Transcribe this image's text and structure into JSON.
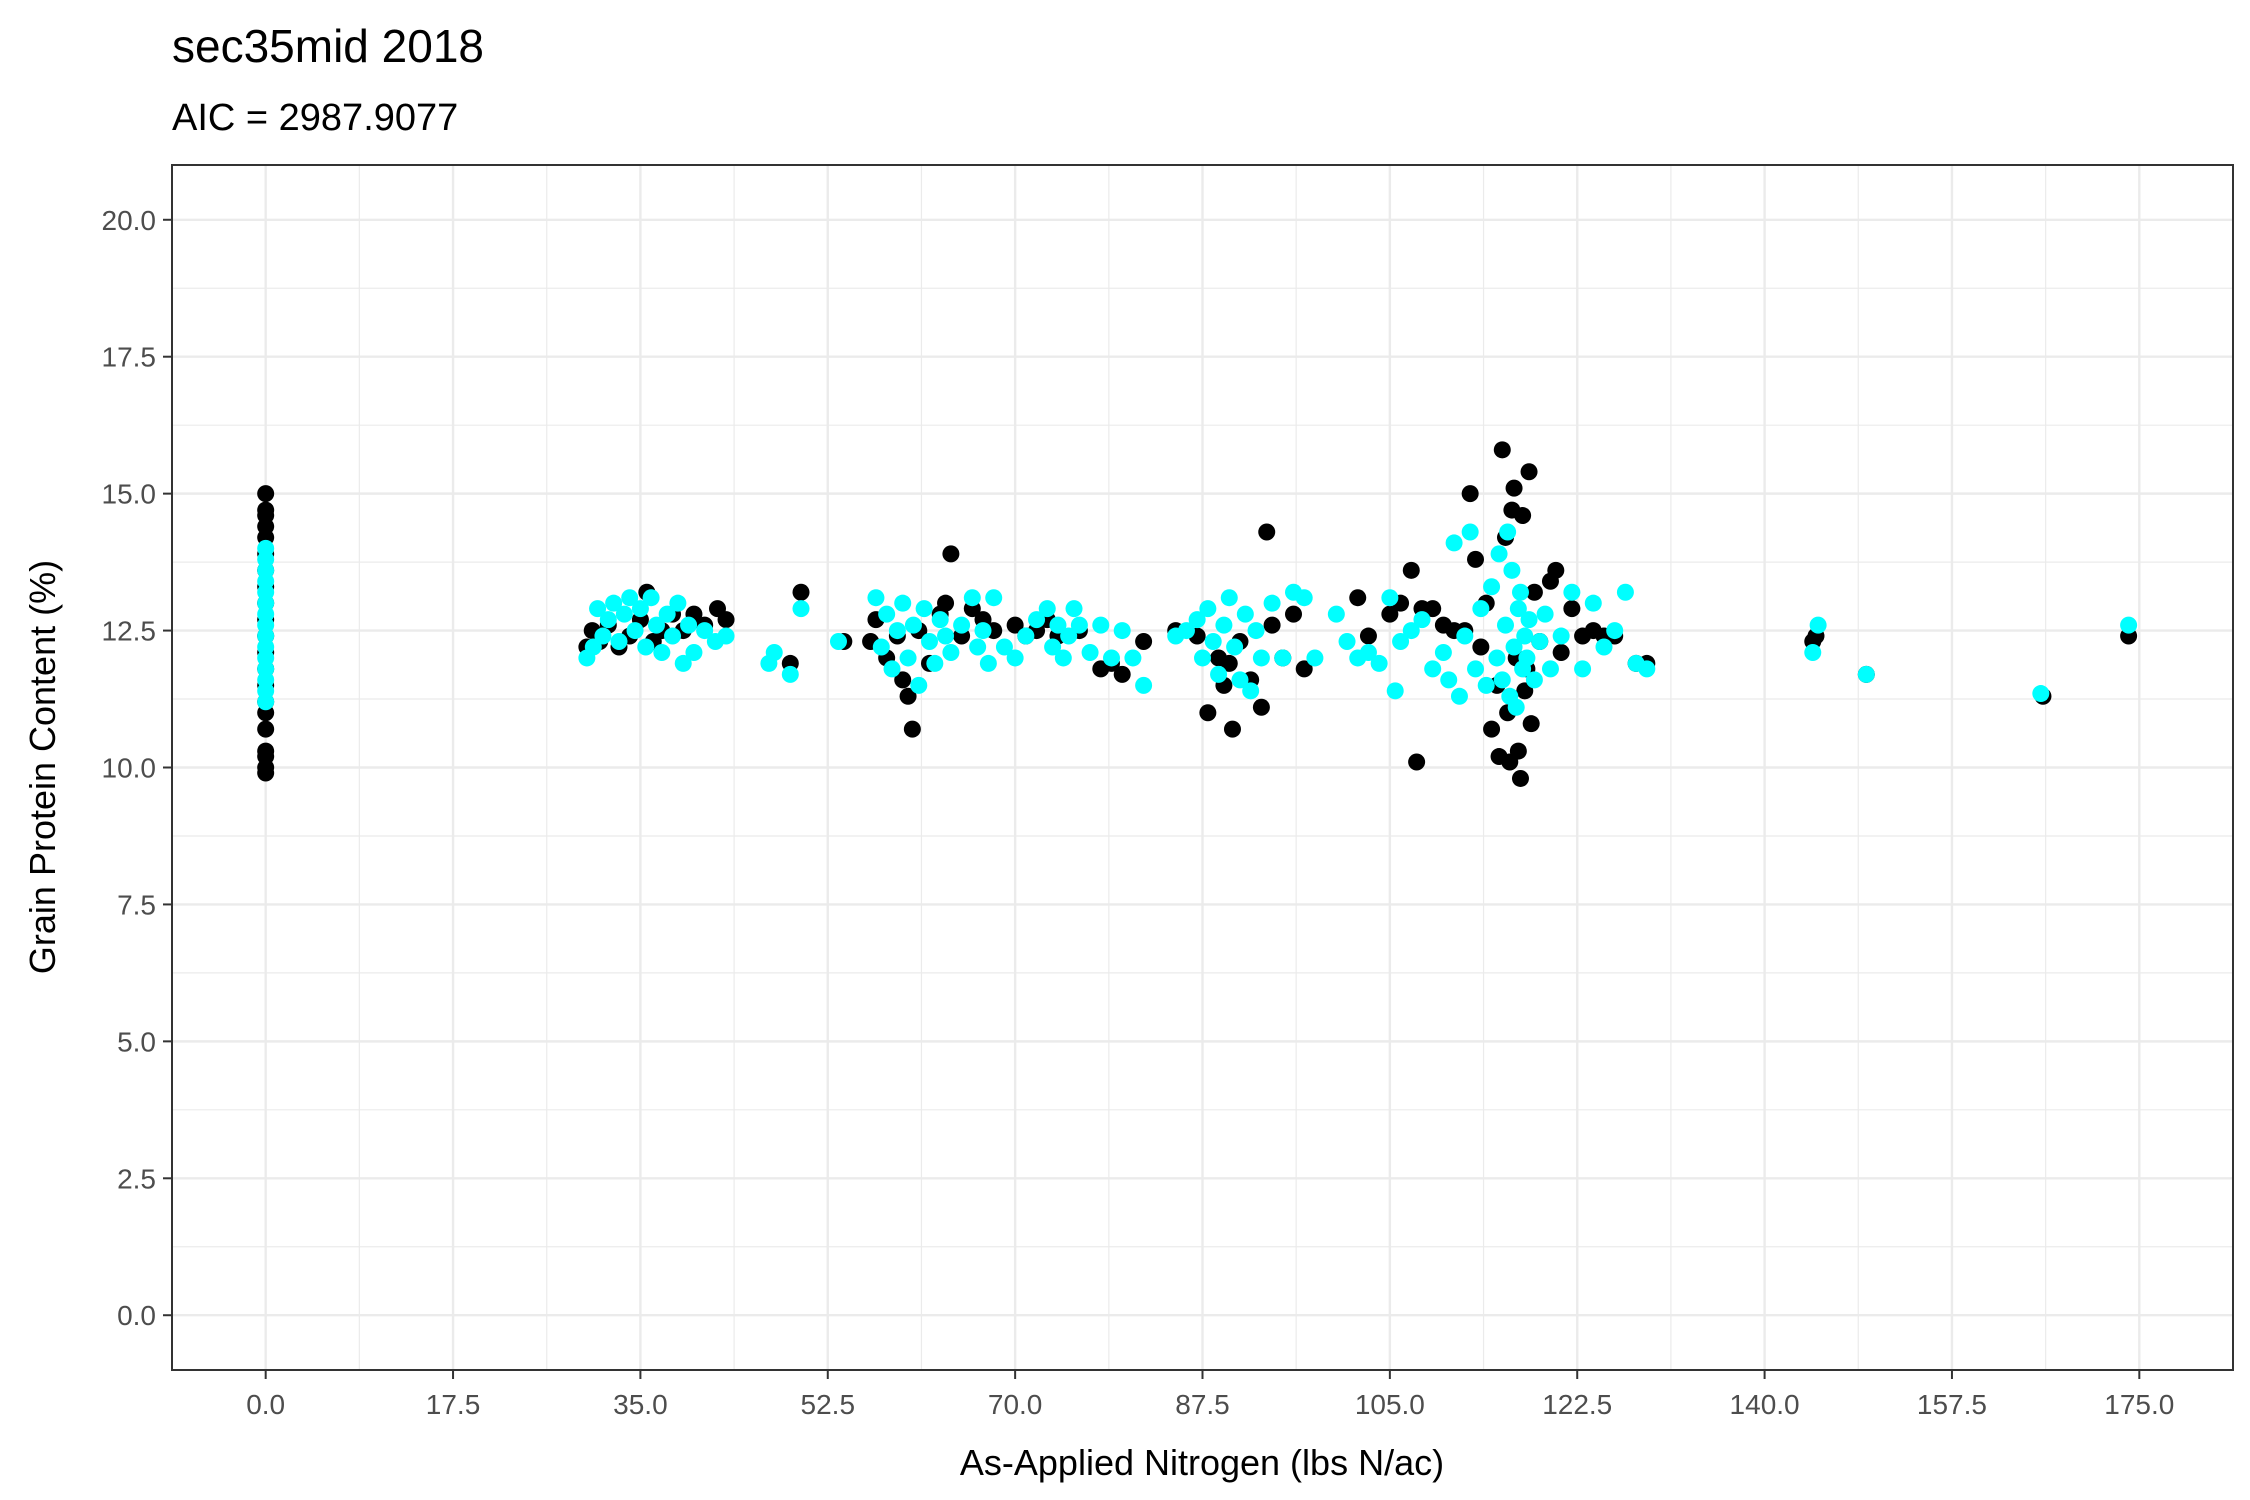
{
  "chart_data": {
    "type": "scatter",
    "title": "sec35mid 2018",
    "subtitle": "AIC = 2987.9077",
    "xlabel": "As-Applied Nitrogen (lbs N/ac)",
    "ylabel": "Grain Protein Content (%)",
    "xlim": [
      -8.75,
      183.75
    ],
    "ylim": [
      -1.0,
      21.0
    ],
    "x_ticks": [
      0,
      17.5,
      35,
      52.5,
      70,
      87.5,
      105,
      122.5,
      140,
      157.5,
      175
    ],
    "x_tick_labels": [
      "0.0",
      "17.5",
      "35.0",
      "52.5",
      "70.0",
      "87.5",
      "105.0",
      "122.5",
      "140.0",
      "157.5",
      "175.0"
    ],
    "y_ticks": [
      0,
      2.5,
      5,
      7.5,
      10,
      12.5,
      15,
      17.5,
      20
    ],
    "y_tick_labels": [
      "0.0",
      "2.5",
      "5.0",
      "7.5",
      "10.0",
      "12.5",
      "15.0",
      "17.5",
      "20.0"
    ],
    "grid": true,
    "legend": "none",
    "series": [
      {
        "color": "#000000",
        "role": "observed",
        "points": [
          [
            0,
            15.0
          ],
          [
            0,
            14.7
          ],
          [
            0,
            14.6
          ],
          [
            0,
            14.4
          ],
          [
            0,
            14.2
          ],
          [
            0,
            13.9
          ],
          [
            0,
            13.6
          ],
          [
            0,
            13.3
          ],
          [
            0,
            13.0
          ],
          [
            0,
            12.7
          ],
          [
            0,
            12.4
          ],
          [
            0,
            12.1
          ],
          [
            0,
            11.8
          ],
          [
            0,
            11.5
          ],
          [
            0,
            11.2
          ],
          [
            0,
            11.0
          ],
          [
            0,
            10.7
          ],
          [
            0,
            10.3
          ],
          [
            0,
            10.2
          ],
          [
            0,
            10.0
          ],
          [
            0,
            9.9
          ],
          [
            30.0,
            12.2
          ],
          [
            30.5,
            12.5
          ],
          [
            31.2,
            12.3
          ],
          [
            32.0,
            12.6
          ],
          [
            33.0,
            12.2
          ],
          [
            34.0,
            12.4
          ],
          [
            35.0,
            12.7
          ],
          [
            35.6,
            13.2
          ],
          [
            36.2,
            12.3
          ],
          [
            37.0,
            12.5
          ],
          [
            38.0,
            12.8
          ],
          [
            39.0,
            12.5
          ],
          [
            40.0,
            12.8
          ],
          [
            41.0,
            12.6
          ],
          [
            42.2,
            12.9
          ],
          [
            43.0,
            12.7
          ],
          [
            49.0,
            11.9
          ],
          [
            50.0,
            13.2
          ],
          [
            54.0,
            12.3
          ],
          [
            56.5,
            12.3
          ],
          [
            57.0,
            12.7
          ],
          [
            58.0,
            12.0
          ],
          [
            59.0,
            12.4
          ],
          [
            59.5,
            11.6
          ],
          [
            60.0,
            11.3
          ],
          [
            60.4,
            10.7
          ],
          [
            61.0,
            12.5
          ],
          [
            62.0,
            11.9
          ],
          [
            63.0,
            12.8
          ],
          [
            63.5,
            13.0
          ],
          [
            64.0,
            13.9
          ],
          [
            65.0,
            12.4
          ],
          [
            66.0,
            12.9
          ],
          [
            67.0,
            12.7
          ],
          [
            68.0,
            12.5
          ],
          [
            70.0,
            12.6
          ],
          [
            71.0,
            12.4
          ],
          [
            72.0,
            12.5
          ],
          [
            73.0,
            12.7
          ],
          [
            74.0,
            12.4
          ],
          [
            76.0,
            12.5
          ],
          [
            78.0,
            11.8
          ],
          [
            79.0,
            11.9
          ],
          [
            80.0,
            11.7
          ],
          [
            82.0,
            12.3
          ],
          [
            85.0,
            12.5
          ],
          [
            87.0,
            12.4
          ],
          [
            88.0,
            11.0
          ],
          [
            89.0,
            12.0
          ],
          [
            89.5,
            11.5
          ],
          [
            90.0,
            11.9
          ],
          [
            90.3,
            10.7
          ],
          [
            91.0,
            12.3
          ],
          [
            92.0,
            11.6
          ],
          [
            93.0,
            11.1
          ],
          [
            93.5,
            14.3
          ],
          [
            94.0,
            12.6
          ],
          [
            95.0,
            12.0
          ],
          [
            96.0,
            12.8
          ],
          [
            97.0,
            11.8
          ],
          [
            102.0,
            13.1
          ],
          [
            103.0,
            12.4
          ],
          [
            105.0,
            12.8
          ],
          [
            106.0,
            13.0
          ],
          [
            107.0,
            13.6
          ],
          [
            107.5,
            10.1
          ],
          [
            108.0,
            12.9
          ],
          [
            109.0,
            12.9
          ],
          [
            110.0,
            12.6
          ],
          [
            111.0,
            12.5
          ],
          [
            112.0,
            12.5
          ],
          [
            112.5,
            15.0
          ],
          [
            113.0,
            13.8
          ],
          [
            113.5,
            12.2
          ],
          [
            114.0,
            13.0
          ],
          [
            114.5,
            10.7
          ],
          [
            115.0,
            11.5
          ],
          [
            115.2,
            10.2
          ],
          [
            115.5,
            15.8
          ],
          [
            115.8,
            14.2
          ],
          [
            116.0,
            11.0
          ],
          [
            116.2,
            10.1
          ],
          [
            116.4,
            14.7
          ],
          [
            116.6,
            15.1
          ],
          [
            116.8,
            12.0
          ],
          [
            117.0,
            10.3
          ],
          [
            117.2,
            9.8
          ],
          [
            117.4,
            14.6
          ],
          [
            117.6,
            11.4
          ],
          [
            117.8,
            11.8
          ],
          [
            118.0,
            15.4
          ],
          [
            118.2,
            10.8
          ],
          [
            118.5,
            13.2
          ],
          [
            119.0,
            12.3
          ],
          [
            120.0,
            13.4
          ],
          [
            120.5,
            13.6
          ],
          [
            121.0,
            12.1
          ],
          [
            122.0,
            12.9
          ],
          [
            123.0,
            12.4
          ],
          [
            124.0,
            12.5
          ],
          [
            125.0,
            12.4
          ],
          [
            126.0,
            12.4
          ],
          [
            128.0,
            11.9
          ],
          [
            129.0,
            11.9
          ],
          [
            144.5,
            12.3
          ],
          [
            144.8,
            12.4
          ],
          [
            149.5,
            11.7
          ],
          [
            166.0,
            11.3
          ],
          [
            174.0,
            12.4
          ]
        ]
      },
      {
        "color": "#00ffff",
        "role": "predicted",
        "points": [
          [
            0,
            14.0
          ],
          [
            0,
            13.8
          ],
          [
            0,
            13.6
          ],
          [
            0,
            13.4
          ],
          [
            0,
            13.2
          ],
          [
            0,
            13.0
          ],
          [
            0,
            12.8
          ],
          [
            0,
            12.6
          ],
          [
            0,
            12.4
          ],
          [
            0,
            12.2
          ],
          [
            0,
            12.0
          ],
          [
            0,
            11.8
          ],
          [
            0,
            11.6
          ],
          [
            0,
            11.4
          ],
          [
            0,
            11.2
          ],
          [
            30.0,
            12.0
          ],
          [
            30.6,
            12.2
          ],
          [
            31.0,
            12.9
          ],
          [
            31.5,
            12.4
          ],
          [
            32.0,
            12.7
          ],
          [
            32.5,
            13.0
          ],
          [
            33.0,
            12.3
          ],
          [
            33.5,
            12.8
          ],
          [
            34.0,
            13.1
          ],
          [
            34.5,
            12.5
          ],
          [
            35.0,
            12.9
          ],
          [
            35.5,
            12.2
          ],
          [
            36.0,
            13.1
          ],
          [
            36.5,
            12.6
          ],
          [
            37.0,
            12.1
          ],
          [
            37.5,
            12.8
          ],
          [
            38.0,
            12.4
          ],
          [
            38.5,
            13.0
          ],
          [
            39.0,
            11.9
          ],
          [
            39.5,
            12.6
          ],
          [
            40.0,
            12.1
          ],
          [
            41.0,
            12.5
          ],
          [
            42.0,
            12.3
          ],
          [
            43.0,
            12.4
          ],
          [
            47.0,
            11.9
          ],
          [
            47.5,
            12.1
          ],
          [
            49.0,
            11.7
          ],
          [
            50.0,
            12.9
          ],
          [
            53.5,
            12.3
          ],
          [
            57.0,
            13.1
          ],
          [
            57.5,
            12.2
          ],
          [
            58.0,
            12.8
          ],
          [
            58.5,
            11.8
          ],
          [
            59.0,
            12.5
          ],
          [
            59.5,
            13.0
          ],
          [
            60.0,
            12.0
          ],
          [
            60.5,
            12.6
          ],
          [
            61.0,
            11.5
          ],
          [
            61.5,
            12.9
          ],
          [
            62.0,
            12.3
          ],
          [
            62.5,
            11.9
          ],
          [
            63.0,
            12.7
          ],
          [
            63.5,
            12.4
          ],
          [
            64.0,
            12.1
          ],
          [
            65.0,
            12.6
          ],
          [
            66.0,
            13.1
          ],
          [
            66.5,
            12.2
          ],
          [
            67.0,
            12.5
          ],
          [
            67.5,
            11.9
          ],
          [
            68.0,
            13.1
          ],
          [
            69.0,
            12.2
          ],
          [
            70.0,
            12.0
          ],
          [
            71.0,
            12.4
          ],
          [
            72.0,
            12.7
          ],
          [
            73.0,
            12.9
          ],
          [
            73.5,
            12.2
          ],
          [
            74.0,
            12.6
          ],
          [
            74.5,
            12.0
          ],
          [
            75.0,
            12.4
          ],
          [
            75.5,
            12.9
          ],
          [
            76.0,
            12.6
          ],
          [
            77.0,
            12.1
          ],
          [
            78.0,
            12.6
          ],
          [
            79.0,
            12.0
          ],
          [
            80.0,
            12.5
          ],
          [
            81.0,
            12.0
          ],
          [
            82.0,
            11.5
          ],
          [
            85.0,
            12.4
          ],
          [
            86.0,
            12.5
          ],
          [
            87.0,
            12.7
          ],
          [
            87.5,
            12.0
          ],
          [
            88.0,
            12.9
          ],
          [
            88.5,
            12.3
          ],
          [
            89.0,
            11.7
          ],
          [
            89.5,
            12.6
          ],
          [
            90.0,
            13.1
          ],
          [
            90.5,
            12.2
          ],
          [
            91.0,
            11.6
          ],
          [
            91.5,
            12.8
          ],
          [
            92.0,
            11.4
          ],
          [
            92.5,
            12.5
          ],
          [
            93.0,
            12.0
          ],
          [
            94.0,
            13.0
          ],
          [
            95.0,
            12.0
          ],
          [
            96.0,
            13.2
          ],
          [
            97.0,
            13.1
          ],
          [
            98.0,
            12.0
          ],
          [
            100.0,
            12.8
          ],
          [
            101.0,
            12.3
          ],
          [
            102.0,
            12.0
          ],
          [
            103.0,
            12.1
          ],
          [
            104.0,
            11.9
          ],
          [
            105.0,
            13.1
          ],
          [
            105.5,
            11.4
          ],
          [
            106.0,
            12.3
          ],
          [
            107.0,
            12.5
          ],
          [
            108.0,
            12.7
          ],
          [
            109.0,
            11.8
          ],
          [
            110.0,
            12.1
          ],
          [
            110.5,
            11.6
          ],
          [
            111.0,
            14.1
          ],
          [
            111.5,
            11.3
          ],
          [
            112.0,
            12.4
          ],
          [
            112.5,
            14.3
          ],
          [
            113.0,
            11.8
          ],
          [
            113.5,
            12.9
          ],
          [
            114.0,
            11.5
          ],
          [
            114.5,
            13.3
          ],
          [
            115.0,
            12.0
          ],
          [
            115.2,
            13.9
          ],
          [
            115.5,
            11.6
          ],
          [
            115.8,
            12.6
          ],
          [
            116.0,
            14.3
          ],
          [
            116.2,
            11.3
          ],
          [
            116.4,
            13.6
          ],
          [
            116.6,
            12.2
          ],
          [
            116.8,
            11.1
          ],
          [
            117.0,
            12.9
          ],
          [
            117.2,
            13.2
          ],
          [
            117.4,
            11.8
          ],
          [
            117.6,
            12.4
          ],
          [
            117.8,
            12.0
          ],
          [
            118.0,
            12.7
          ],
          [
            118.5,
            11.6
          ],
          [
            119.0,
            12.3
          ],
          [
            119.5,
            12.8
          ],
          [
            120.0,
            11.8
          ],
          [
            121.0,
            12.4
          ],
          [
            122.0,
            13.2
          ],
          [
            123.0,
            11.8
          ],
          [
            124.0,
            13.0
          ],
          [
            125.0,
            12.2
          ],
          [
            126.0,
            12.5
          ],
          [
            127.0,
            13.2
          ],
          [
            128.0,
            11.9
          ],
          [
            129.0,
            11.8
          ],
          [
            144.5,
            12.1
          ],
          [
            145.0,
            12.6
          ],
          [
            149.5,
            11.7
          ],
          [
            165.8,
            11.35
          ],
          [
            174.0,
            12.6
          ]
        ]
      }
    ]
  }
}
